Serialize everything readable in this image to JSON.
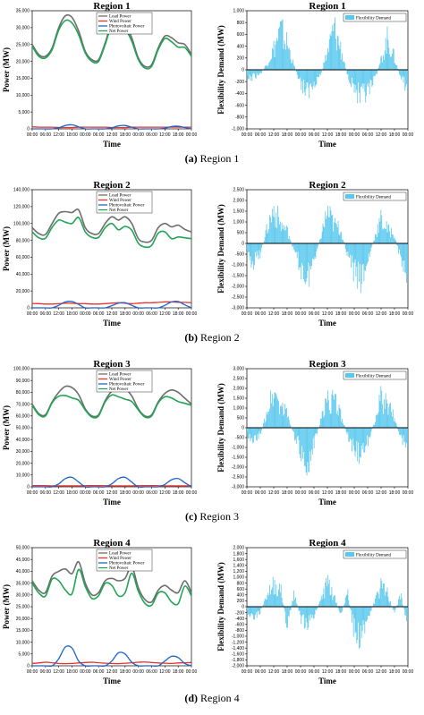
{
  "colors": {
    "load": "#6d6d6d",
    "wind": "#e8322c",
    "pv": "#1f63c9",
    "net": "#22a455",
    "flex": "#5ac8ee"
  },
  "x_ticks": [
    "00:00",
    "06:00",
    "12:00",
    "18:00",
    "00:00",
    "06:00",
    "12:00",
    "18:00",
    "00:00",
    "06:00",
    "12:00",
    "18:00",
    "00:00"
  ],
  "power_legend": [
    "Load Power",
    "Wind Power",
    "Photovoltaic Power",
    "Net Power"
  ],
  "flex_legend": "Flexibility Demand",
  "power_ylabel": "Power (MW)",
  "flex_ylabel": "Flexibility Demand (MW)",
  "xlabel": "Time",
  "captions": [
    {
      "letter": "(a)",
      "text": " Region 1"
    },
    {
      "letter": "(b)",
      "text": " Region 2"
    },
    {
      "letter": "(c)",
      "text": " Region 3"
    },
    {
      "letter": "(d)",
      "text": " Region 4"
    }
  ],
  "chart_data": [
    {
      "type": "line",
      "title": "Region 1",
      "xlabel": "Time",
      "ylabel": "Power (MW)",
      "ylim": [
        0,
        35000
      ],
      "y_ticks": [
        "0",
        "5,000",
        "10,000",
        "15,000",
        "20,000",
        "25,000",
        "30,000",
        "35,000"
      ],
      "series": [
        {
          "name": "Load Power",
          "key": "load",
          "values": [
            25000,
            22000,
            21500,
            24000,
            30000,
            33500,
            33000,
            29000,
            23000,
            20500,
            20500,
            25500,
            31500,
            32500,
            31000,
            27000,
            21000,
            18500,
            19000,
            24000,
            27500,
            27000,
            25500,
            25000,
            22000
          ]
        },
        {
          "name": "Wind Power",
          "key": "wind",
          "values": [
            600,
            500,
            500,
            500,
            400,
            400,
            400,
            500,
            500,
            500,
            500,
            500,
            400,
            400,
            400,
            500,
            500,
            500,
            500,
            500,
            500,
            500,
            500,
            500,
            500
          ]
        },
        {
          "name": "Photovoltaic Power",
          "key": "pv",
          "values": [
            0,
            0,
            0,
            0,
            300,
            1000,
            1200,
            600,
            0,
            0,
            0,
            0,
            300,
            900,
            1000,
            500,
            0,
            0,
            0,
            0,
            200,
            700,
            800,
            400,
            0
          ]
        },
        {
          "name": "Net Power",
          "key": "net",
          "values": [
            24500,
            21500,
            21000,
            23500,
            29300,
            32100,
            31400,
            27900,
            22500,
            20000,
            20000,
            25000,
            30800,
            31200,
            29600,
            26000,
            20500,
            18000,
            18500,
            23500,
            26800,
            25800,
            24200,
            24100,
            21500
          ]
        }
      ]
    },
    {
      "type": "bar",
      "title": "Region 1",
      "xlabel": "Time",
      "ylabel": "Flexibility Demand (MW)",
      "ylim": [
        -1000,
        1000
      ],
      "y_ticks": [
        "-1,000",
        "-800",
        "-600",
        "-400",
        "-200",
        "0",
        "200",
        "400",
        "600",
        "800",
        "1,000"
      ],
      "series": [
        {
          "name": "Flexibility Demand",
          "key": "flex",
          "values": [
            -250,
            -150,
            -100,
            150,
            500,
            900,
            600,
            100,
            -300,
            -550,
            -300,
            -100,
            400,
            950,
            500,
            -100,
            -400,
            -700,
            -550,
            -300,
            200,
            700,
            300,
            -200,
            -400
          ]
        }
      ]
    },
    {
      "type": "line",
      "title": "Region 2",
      "xlabel": "Time",
      "ylabel": "Power (MW)",
      "ylim": [
        0,
        140000
      ],
      "y_ticks": [
        "0",
        "20,000",
        "40,000",
        "60,000",
        "80,000",
        "100,000",
        "120,000",
        "140,000"
      ],
      "series": [
        {
          "name": "Load Power",
          "key": "load",
          "values": [
            95000,
            88000,
            87000,
            100000,
            112000,
            114000,
            113000,
            116000,
            95000,
            88000,
            88000,
            100000,
            108000,
            104000,
            108000,
            100000,
            82000,
            78000,
            80000,
            95000,
            100000,
            96000,
            98000,
            93000,
            90000
          ]
        },
        {
          "name": "Wind Power",
          "key": "wind",
          "values": [
            5000,
            5000,
            4500,
            4500,
            5000,
            5500,
            5500,
            5000,
            5000,
            4500,
            4500,
            5000,
            5500,
            6000,
            5500,
            5000,
            5500,
            6000,
            6000,
            6500,
            7000,
            7000,
            6500,
            6500,
            6000
          ]
        },
        {
          "name": "Photovoltaic Power",
          "key": "pv",
          "values": [
            0,
            0,
            0,
            0,
            3000,
            7000,
            7500,
            4000,
            0,
            0,
            0,
            0,
            2500,
            5500,
            6000,
            3000,
            0,
            0,
            0,
            0,
            3000,
            7000,
            7500,
            3500,
            0
          ]
        },
        {
          "name": "Net Power",
          "key": "net",
          "values": [
            90000,
            83000,
            82500,
            95500,
            104000,
            101500,
            100000,
            107000,
            90000,
            83500,
            83500,
            95000,
            100000,
            92500,
            96500,
            92000,
            76500,
            72000,
            74000,
            88500,
            90000,
            82000,
            84000,
            83000,
            82000
          ]
        }
      ]
    },
    {
      "type": "bar",
      "title": "Region 2",
      "xlabel": "Time",
      "ylabel": "Flexibility Demand (MW)",
      "ylim": [
        -3000,
        2500
      ],
      "y_ticks": [
        "-3,000",
        "-2,500",
        "-2,000",
        "-1,500",
        "-1,000",
        "-500",
        "0",
        "500",
        "1,000",
        "1,500",
        "2,000",
        "2,500"
      ],
      "series": [
        {
          "name": "Flexibility Demand",
          "key": "flex",
          "values": [
            -800,
            -1200,
            -600,
            1000,
            2200,
            1200,
            800,
            -500,
            -1500,
            -2300,
            -1000,
            400,
            2000,
            1200,
            900,
            -700,
            -1800,
            -2500,
            -1200,
            300,
            1500,
            900,
            600,
            -1000,
            -2000
          ]
        }
      ]
    },
    {
      "type": "line",
      "title": "Region 3",
      "xlabel": "Time",
      "ylabel": "Power (MW)",
      "ylim": [
        0,
        100000
      ],
      "y_ticks": [
        "0",
        "10,000",
        "20,000",
        "30,000",
        "40,000",
        "50,000",
        "60,000",
        "70,000",
        "80,000",
        "90,000",
        "100,000"
      ],
      "series": [
        {
          "name": "Load Power",
          "key": "load",
          "values": [
            70000,
            62000,
            61000,
            72000,
            80000,
            85000,
            84000,
            78000,
            66000,
            60000,
            61000,
            73000,
            81000,
            84000,
            83000,
            77000,
            66000,
            60000,
            61000,
            72000,
            79000,
            82000,
            80000,
            75000,
            70000
          ]
        },
        {
          "name": "Wind Power",
          "key": "wind",
          "values": [
            1000,
            1000,
            1000,
            800,
            800,
            800,
            800,
            800,
            1000,
            1000,
            1000,
            1000,
            800,
            800,
            800,
            800,
            1000,
            1000,
            1000,
            1000,
            800,
            800,
            800,
            800,
            1000
          ]
        },
        {
          "name": "Photovoltaic Power",
          "key": "pv",
          "values": [
            0,
            0,
            0,
            0,
            2500,
            7000,
            8000,
            4000,
            0,
            0,
            0,
            0,
            2500,
            7000,
            8000,
            4000,
            0,
            0,
            0,
            0,
            2000,
            6000,
            7000,
            3500,
            0
          ]
        },
        {
          "name": "Net Power",
          "key": "net",
          "values": [
            69000,
            61000,
            60000,
            71200,
            76700,
            77200,
            75200,
            73200,
            65000,
            59000,
            60000,
            72000,
            77700,
            76200,
            74200,
            72200,
            65000,
            59000,
            60000,
            71000,
            76200,
            75200,
            72200,
            70700,
            69000
          ]
        }
      ]
    },
    {
      "type": "bar",
      "title": "Region 3",
      "xlabel": "Time",
      "ylabel": "Flexibility Demand (MW)",
      "ylim": [
        -3000,
        3000
      ],
      "y_ticks": [
        "-3,000",
        "-2,500",
        "-2,000",
        "-1,500",
        "-1,000",
        "-500",
        "0",
        "500",
        "1,000",
        "1,500",
        "2,000",
        "2,500",
        "3,000"
      ],
      "series": [
        {
          "name": "Flexibility Demand",
          "key": "flex",
          "values": [
            -500,
            -800,
            -400,
            1200,
            2500,
            1500,
            1000,
            -600,
            -1500,
            -2400,
            -1200,
            500,
            2000,
            1800,
            1000,
            -500,
            -1400,
            -2200,
            -1000,
            300,
            2000,
            1500,
            800,
            -800,
            -1500
          ]
        }
      ]
    },
    {
      "type": "line",
      "title": "Region 4",
      "xlabel": "Time",
      "ylabel": "Power (MW)",
      "ylim": [
        0,
        50000
      ],
      "y_ticks": [
        "0",
        "5,000",
        "10,000",
        "15,000",
        "20,000",
        "25,000",
        "30,000",
        "35,000",
        "40,000",
        "45,000",
        "50,000"
      ],
      "series": [
        {
          "name": "Load Power",
          "key": "load",
          "values": [
            36000,
            32000,
            31000,
            38000,
            40000,
            41000,
            39000,
            44000,
            35000,
            30000,
            31000,
            36000,
            37000,
            36000,
            37000,
            42000,
            33000,
            28000,
            27000,
            32000,
            34000,
            32000,
            31000,
            36000,
            31000
          ]
        },
        {
          "name": "Wind Power",
          "key": "wind",
          "values": [
            1000,
            1200,
            1500,
            1300,
            1000,
            900,
            1000,
            1200,
            1400,
            1500,
            1300,
            1100,
            1000,
            900,
            1100,
            1300,
            1500,
            1600,
            1400,
            1200,
            1100,
            1000,
            1200,
            1300,
            1400
          ]
        },
        {
          "name": "Photovoltaic Power",
          "key": "pv",
          "values": [
            0,
            0,
            0,
            0,
            3000,
            8000,
            7500,
            2000,
            0,
            0,
            0,
            0,
            2000,
            5500,
            5000,
            1500,
            0,
            0,
            0,
            0,
            2000,
            4000,
            3500,
            1000,
            0
          ]
        },
        {
          "name": "Net Power",
          "key": "net",
          "values": [
            35000,
            30800,
            29500,
            36700,
            36000,
            32100,
            30500,
            40800,
            33600,
            28500,
            29700,
            34900,
            34000,
            29600,
            30900,
            39200,
            31500,
            26400,
            25600,
            30800,
            30900,
            27000,
            26300,
            33700,
            29600
          ]
        }
      ]
    },
    {
      "type": "bar",
      "title": "Region 4",
      "xlabel": "Time",
      "ylabel": "Flexibility Demand (MW)",
      "ylim": [
        -2000,
        2000
      ],
      "y_ticks": [
        "-2,000",
        "-1,800",
        "-1,600",
        "-1,400",
        "-1,200",
        "-1,000",
        "-800",
        "-600",
        "-400",
        "-200",
        "0",
        "200",
        "400",
        "600",
        "800",
        "1,000",
        "1,200",
        "1,400",
        "1,600",
        "1,800",
        "2,000"
      ],
      "series": [
        {
          "name": "Flexibility Demand",
          "key": "flex",
          "values": [
            -300,
            -500,
            -200,
            600,
            1000,
            800,
            -900,
            600,
            -500,
            -900,
            -400,
            300,
            1100,
            500,
            -400,
            700,
            -1100,
            -1400,
            -600,
            200,
            900,
            600,
            -300,
            500,
            -700
          ]
        }
      ]
    }
  ]
}
